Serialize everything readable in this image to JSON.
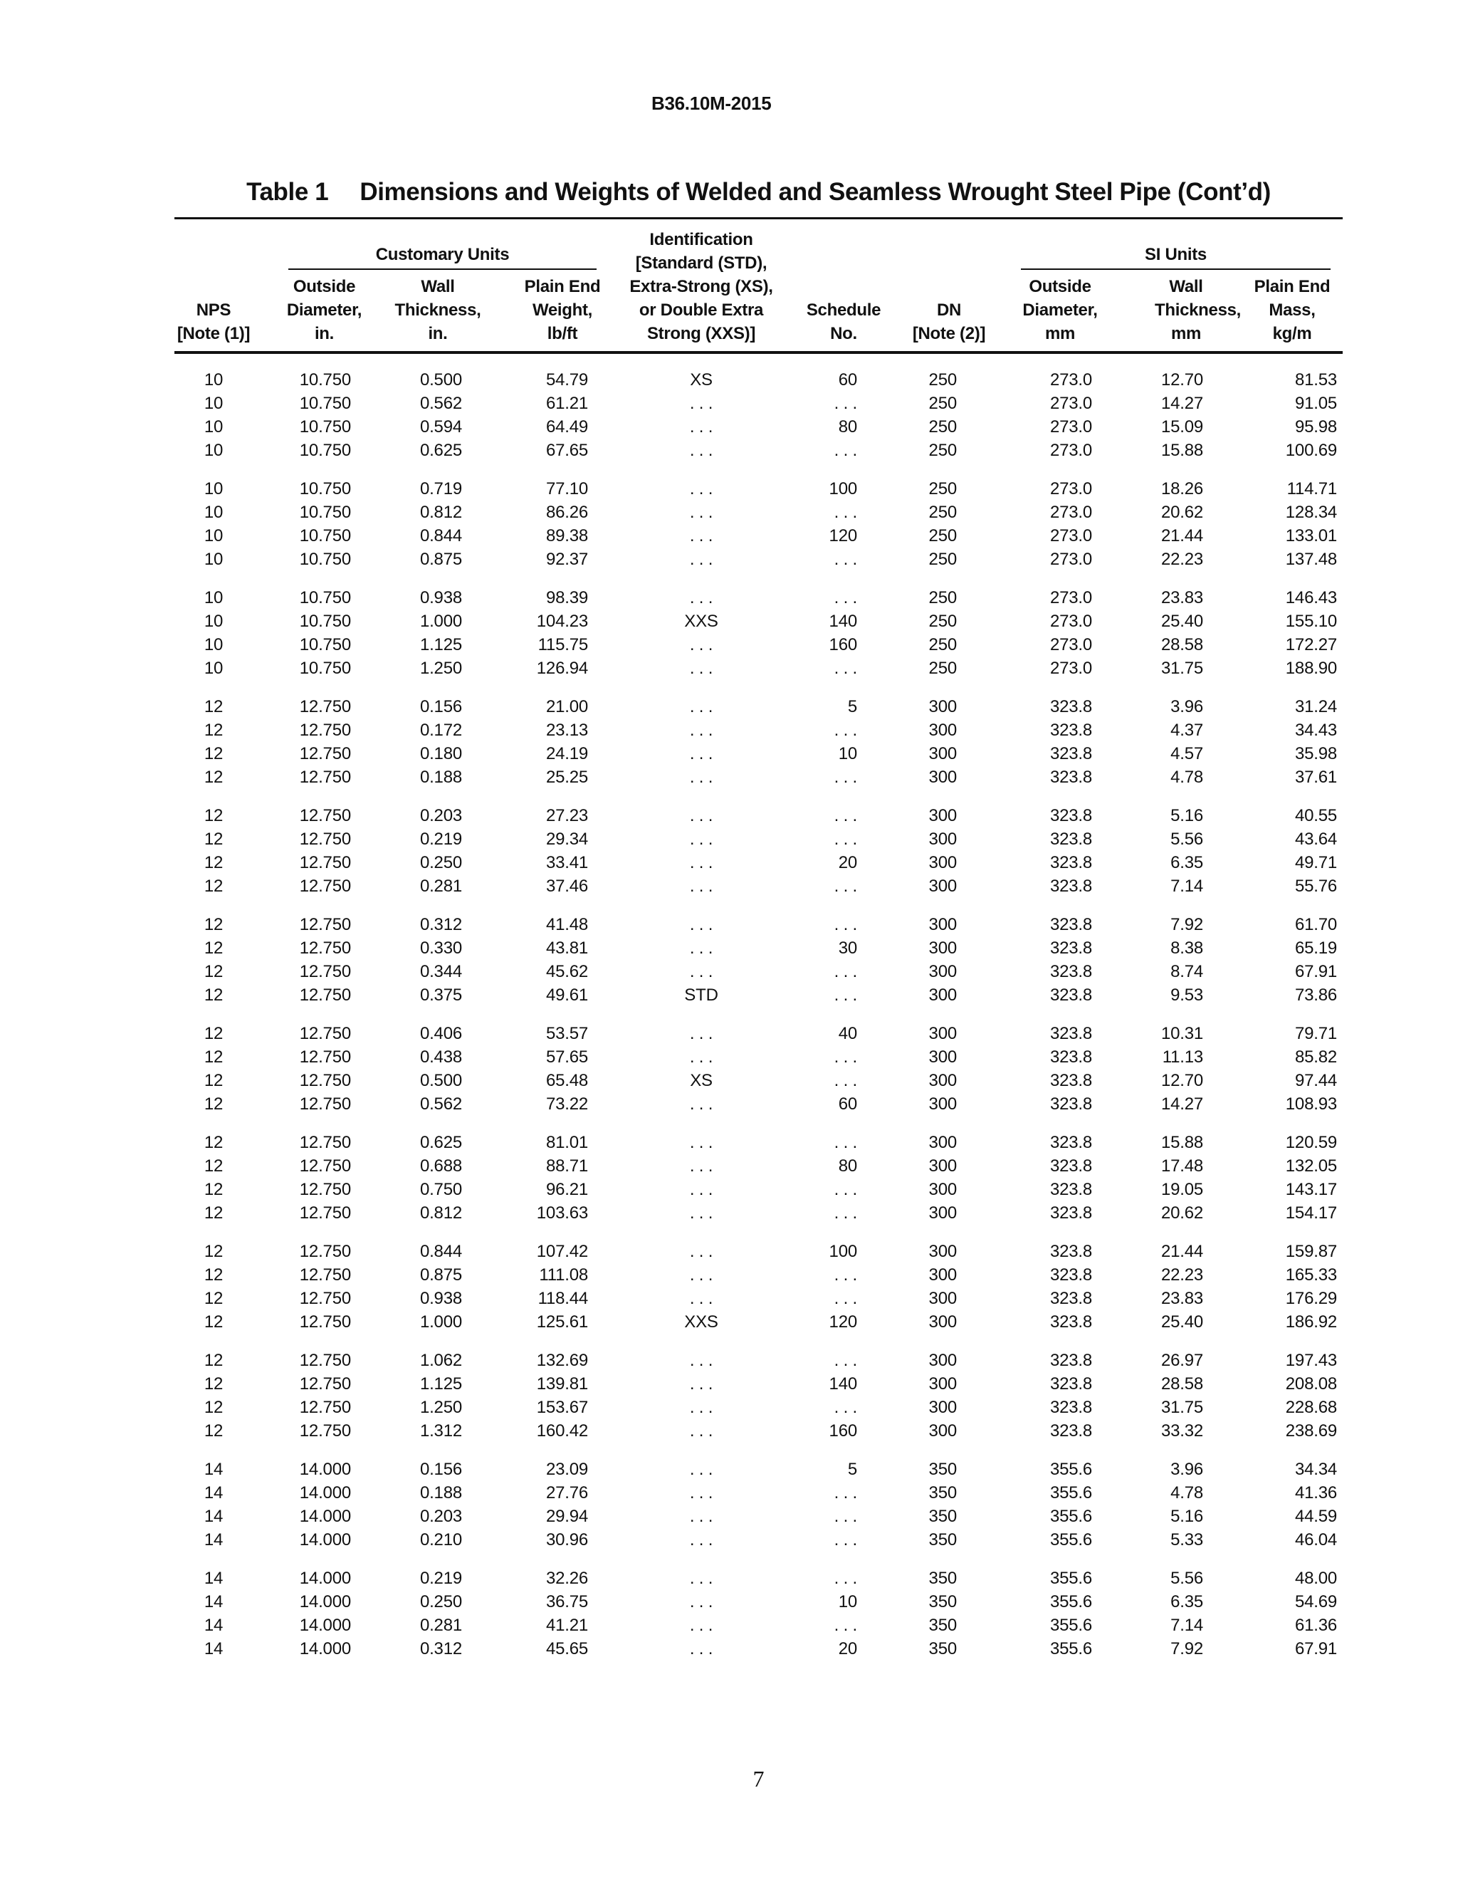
{
  "page": {
    "doc_code": "B36.10M-2015",
    "page_number": "7",
    "background_color": "#ffffff",
    "text_color": "#111111"
  },
  "table": {
    "number": "Table 1",
    "caption": "Dimensions and Weights of Welded and Seamless Wrought Steel Pipe (Cont’d)",
    "spanners": {
      "customary": "Customary Units",
      "si": "SI Units"
    },
    "columns": [
      {
        "id": "nps",
        "lines": [
          "NPS",
          "[Note (1)]"
        ]
      },
      {
        "id": "od-in",
        "lines": [
          "Outside",
          "Diameter,",
          "in."
        ]
      },
      {
        "id": "wall-in",
        "lines": [
          "Wall",
          "Thickness,",
          "in."
        ]
      },
      {
        "id": "weight-lbft",
        "lines": [
          "Plain End",
          "Weight,",
          "lb/ft"
        ]
      },
      {
        "id": "identification",
        "lines": [
          "Identification",
          "[Standard (STD),",
          "Extra-Strong (XS),",
          "or Double Extra",
          "Strong (XXS)]"
        ]
      },
      {
        "id": "schedule-no",
        "lines": [
          "Schedule",
          "No."
        ]
      },
      {
        "id": "dn",
        "lines": [
          "DN",
          "[Note (2)]"
        ]
      },
      {
        "id": "od-mm",
        "lines": [
          "Outside",
          "Diameter,",
          "mm"
        ]
      },
      {
        "id": "wall-mm",
        "lines": [
          "Wall",
          "Thickness,",
          "mm"
        ]
      },
      {
        "id": "mass-kgm",
        "lines": [
          "Plain End",
          "Mass,",
          "kg/m"
        ]
      }
    ],
    "row_groups": [
      [
        [
          "10",
          "10.750",
          "0.500",
          "54.79",
          "XS",
          "60",
          "250",
          "273.0",
          "12.70",
          "81.53"
        ],
        [
          "10",
          "10.750",
          "0.562",
          "61.21",
          ". . .",
          ". . .",
          "250",
          "273.0",
          "14.27",
          "91.05"
        ],
        [
          "10",
          "10.750",
          "0.594",
          "64.49",
          ". . .",
          "80",
          "250",
          "273.0",
          "15.09",
          "95.98"
        ],
        [
          "10",
          "10.750",
          "0.625",
          "67.65",
          ". . .",
          ". . .",
          "250",
          "273.0",
          "15.88",
          "100.69"
        ]
      ],
      [
        [
          "10",
          "10.750",
          "0.719",
          "77.10",
          ". . .",
          "100",
          "250",
          "273.0",
          "18.26",
          "114.71"
        ],
        [
          "10",
          "10.750",
          "0.812",
          "86.26",
          ". . .",
          ". . .",
          "250",
          "273.0",
          "20.62",
          "128.34"
        ],
        [
          "10",
          "10.750",
          "0.844",
          "89.38",
          ". . .",
          "120",
          "250",
          "273.0",
          "21.44",
          "133.01"
        ],
        [
          "10",
          "10.750",
          "0.875",
          "92.37",
          ". . .",
          ". . .",
          "250",
          "273.0",
          "22.23",
          "137.48"
        ]
      ],
      [
        [
          "10",
          "10.750",
          "0.938",
          "98.39",
          ". . .",
          ". . .",
          "250",
          "273.0",
          "23.83",
          "146.43"
        ],
        [
          "10",
          "10.750",
          "1.000",
          "104.23",
          "XXS",
          "140",
          "250",
          "273.0",
          "25.40",
          "155.10"
        ],
        [
          "10",
          "10.750",
          "1.125",
          "115.75",
          ". . .",
          "160",
          "250",
          "273.0",
          "28.58",
          "172.27"
        ],
        [
          "10",
          "10.750",
          "1.250",
          "126.94",
          ". . .",
          ". . .",
          "250",
          "273.0",
          "31.75",
          "188.90"
        ]
      ],
      [
        [
          "12",
          "12.750",
          "0.156",
          "21.00",
          ". . .",
          "5",
          "300",
          "323.8",
          "3.96",
          "31.24"
        ],
        [
          "12",
          "12.750",
          "0.172",
          "23.13",
          ". . .",
          ". . .",
          "300",
          "323.8",
          "4.37",
          "34.43"
        ],
        [
          "12",
          "12.750",
          "0.180",
          "24.19",
          ". . .",
          "10",
          "300",
          "323.8",
          "4.57",
          "35.98"
        ],
        [
          "12",
          "12.750",
          "0.188",
          "25.25",
          ". . .",
          ". . .",
          "300",
          "323.8",
          "4.78",
          "37.61"
        ]
      ],
      [
        [
          "12",
          "12.750",
          "0.203",
          "27.23",
          ". . .",
          ". . .",
          "300",
          "323.8",
          "5.16",
          "40.55"
        ],
        [
          "12",
          "12.750",
          "0.219",
          "29.34",
          ". . .",
          ". . .",
          "300",
          "323.8",
          "5.56",
          "43.64"
        ],
        [
          "12",
          "12.750",
          "0.250",
          "33.41",
          ". . .",
          "20",
          "300",
          "323.8",
          "6.35",
          "49.71"
        ],
        [
          "12",
          "12.750",
          "0.281",
          "37.46",
          ". . .",
          ". . .",
          "300",
          "323.8",
          "7.14",
          "55.76"
        ]
      ],
      [
        [
          "12",
          "12.750",
          "0.312",
          "41.48",
          ". . .",
          ". . .",
          "300",
          "323.8",
          "7.92",
          "61.70"
        ],
        [
          "12",
          "12.750",
          "0.330",
          "43.81",
          ". . .",
          "30",
          "300",
          "323.8",
          "8.38",
          "65.19"
        ],
        [
          "12",
          "12.750",
          "0.344",
          "45.62",
          ". . .",
          ". . .",
          "300",
          "323.8",
          "8.74",
          "67.91"
        ],
        [
          "12",
          "12.750",
          "0.375",
          "49.61",
          "STD",
          ". . .",
          "300",
          "323.8",
          "9.53",
          "73.86"
        ]
      ],
      [
        [
          "12",
          "12.750",
          "0.406",
          "53.57",
          ". . .",
          "40",
          "300",
          "323.8",
          "10.31",
          "79.71"
        ],
        [
          "12",
          "12.750",
          "0.438",
          "57.65",
          ". . .",
          ". . .",
          "300",
          "323.8",
          "11.13",
          "85.82"
        ],
        [
          "12",
          "12.750",
          "0.500",
          "65.48",
          "XS",
          ". . .",
          "300",
          "323.8",
          "12.70",
          "97.44"
        ],
        [
          "12",
          "12.750",
          "0.562",
          "73.22",
          ". . .",
          "60",
          "300",
          "323.8",
          "14.27",
          "108.93"
        ]
      ],
      [
        [
          "12",
          "12.750",
          "0.625",
          "81.01",
          ". . .",
          ". . .",
          "300",
          "323.8",
          "15.88",
          "120.59"
        ],
        [
          "12",
          "12.750",
          "0.688",
          "88.71",
          ". . .",
          "80",
          "300",
          "323.8",
          "17.48",
          "132.05"
        ],
        [
          "12",
          "12.750",
          "0.750",
          "96.21",
          ". . .",
          ". . .",
          "300",
          "323.8",
          "19.05",
          "143.17"
        ],
        [
          "12",
          "12.750",
          "0.812",
          "103.63",
          ". . .",
          ". . .",
          "300",
          "323.8",
          "20.62",
          "154.17"
        ]
      ],
      [
        [
          "12",
          "12.750",
          "0.844",
          "107.42",
          ". . .",
          "100",
          "300",
          "323.8",
          "21.44",
          "159.87"
        ],
        [
          "12",
          "12.750",
          "0.875",
          "111.08",
          ". . .",
          ". . .",
          "300",
          "323.8",
          "22.23",
          "165.33"
        ],
        [
          "12",
          "12.750",
          "0.938",
          "118.44",
          ". . .",
          ". . .",
          "300",
          "323.8",
          "23.83",
          "176.29"
        ],
        [
          "12",
          "12.750",
          "1.000",
          "125.61",
          "XXS",
          "120",
          "300",
          "323.8",
          "25.40",
          "186.92"
        ]
      ],
      [
        [
          "12",
          "12.750",
          "1.062",
          "132.69",
          ". . .",
          ". . .",
          "300",
          "323.8",
          "26.97",
          "197.43"
        ],
        [
          "12",
          "12.750",
          "1.125",
          "139.81",
          ". . .",
          "140",
          "300",
          "323.8",
          "28.58",
          "208.08"
        ],
        [
          "12",
          "12.750",
          "1.250",
          "153.67",
          ". . .",
          ". . .",
          "300",
          "323.8",
          "31.75",
          "228.68"
        ],
        [
          "12",
          "12.750",
          "1.312",
          "160.42",
          ". . .",
          "160",
          "300",
          "323.8",
          "33.32",
          "238.69"
        ]
      ],
      [
        [
          "14",
          "14.000",
          "0.156",
          "23.09",
          ". . .",
          "5",
          "350",
          "355.6",
          "3.96",
          "34.34"
        ],
        [
          "14",
          "14.000",
          "0.188",
          "27.76",
          ". . .",
          ". . .",
          "350",
          "355.6",
          "4.78",
          "41.36"
        ],
        [
          "14",
          "14.000",
          "0.203",
          "29.94",
          ". . .",
          ". . .",
          "350",
          "355.6",
          "5.16",
          "44.59"
        ],
        [
          "14",
          "14.000",
          "0.210",
          "30.96",
          ". . .",
          ". . .",
          "350",
          "355.6",
          "5.33",
          "46.04"
        ]
      ],
      [
        [
          "14",
          "14.000",
          "0.219",
          "32.26",
          ". . .",
          ". . .",
          "350",
          "355.6",
          "5.56",
          "48.00"
        ],
        [
          "14",
          "14.000",
          "0.250",
          "36.75",
          ". . .",
          "10",
          "350",
          "355.6",
          "6.35",
          "54.69"
        ],
        [
          "14",
          "14.000",
          "0.281",
          "41.21",
          ". . .",
          ". . .",
          "350",
          "355.6",
          "7.14",
          "61.36"
        ],
        [
          "14",
          "14.000",
          "0.312",
          "45.65",
          ". . .",
          "20",
          "350",
          "355.6",
          "7.92",
          "67.91"
        ]
      ]
    ]
  }
}
